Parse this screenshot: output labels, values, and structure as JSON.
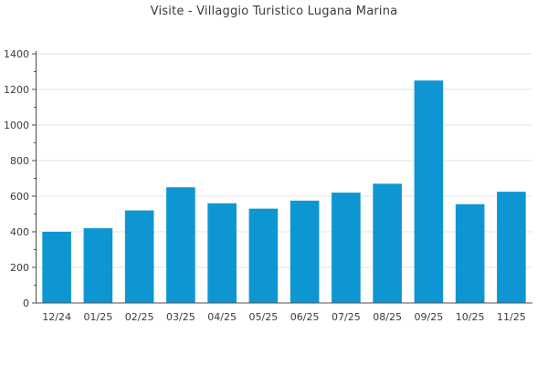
{
  "page": {
    "background": "#ffffff"
  },
  "chart_data": {
    "type": "bar",
    "title": "Visite - Villaggio Turistico Lugana Marina",
    "categories": [
      "12/24",
      "01/25",
      "02/25",
      "03/25",
      "04/25",
      "05/25",
      "06/25",
      "07/25",
      "08/25",
      "09/25",
      "10/25",
      "11/25"
    ],
    "values": [
      400,
      420,
      520,
      650,
      560,
      530,
      575,
      620,
      670,
      1250,
      555,
      625
    ],
    "xlabel": "",
    "ylabel": "",
    "ylim": [
      0,
      1400
    ],
    "y_ticks": [
      0,
      200,
      400,
      600,
      800,
      1000,
      1200,
      1400
    ],
    "y_minor_tick_step": 100,
    "grid": true,
    "legend_position": "none",
    "colors": {
      "bar": "#0e96d2",
      "grid": "#e3e3e3",
      "axis": "#4d4d4d",
      "text": "#3b3b3b",
      "background": "#ffffff"
    }
  }
}
